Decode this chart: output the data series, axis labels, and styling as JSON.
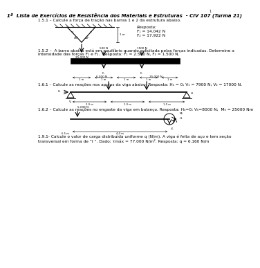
{
  "title": "1ª  Lista de Exercícios de Resistência dos Materiais e Estruturas  - CIV 107 (Turma 21)",
  "page_number": "1",
  "background": "#ffffff",
  "sec151_text": "1.5.1 – Calcule a força de tração nas barras 1 e 2 da estrutura abaixo.",
  "sec151_resp1": "Resposta:",
  "sec151_resp2": "F₁ = 14.042 N",
  "sec151_resp3": "F₂ = 17.922 N",
  "sec151_force": "25.000 N",
  "sec151_angle1": "45°",
  "sec151_angle2": "40°",
  "sec151_height": "1 m",
  "sec151_bar1": "1",
  "sec151_bar2": "2",
  "sec152_text1": "1.5.2 –  A barra abaixo está em equilíbrio quando solicitada pelas forças indicadas. Determine a",
  "sec152_text2": "intensidade das forças F₁ e F₂.  Resposta: F₁ = 2.500 N, F₂ = 1.500 N.",
  "sec152_f1": "500 N",
  "sec152_f2": "1500 N",
  "sec152_r1": "F₁",
  "sec152_r2": "F₂",
  "sec152_dims": [
    "1 m",
    "1 m",
    "1 m",
    "1 m",
    "1 m"
  ],
  "sec161_text": "1.6.1 – Calcule as reações nos apoios da viga abaixo. Resposta: H₁ = 0; V₁ = 7900 N; V₂ = 17000 N.",
  "sec161_f1": "5.000 N",
  "sec161_f2": "25.000 N",
  "sec161_ha": "H₁",
  "sec161_va": "V₁",
  "sec161_vb": "V₂",
  "sec161_d1": "2.0 m",
  "sec161_d2": "1.0 m",
  "sec161_d3": "1.0 m",
  "sec162_text": "1.6.2 – Calcule as reações no engaste da viga em balanço. Resposta: H₀=0; V₀=8000 N;  M₀ = 25000 Nm",
  "sec162_force": "5.008 N",
  "sec162_ha": "H₀",
  "sec162_va": "V₀",
  "sec162_ma": "M₀",
  "sec162_d1": "6.5 m",
  "sec162_d2": "4.0 m",
  "sec191_text1": "1.9.1- Calcule o valor de carga distribuída uniforme q (N/m). A viga é feita de aço e tem seção",
  "sec191_text2": "transversal em forma de “I ”. Dado: τmáx = 77.000 N/m². Resposta: q = 6.160 N/m"
}
